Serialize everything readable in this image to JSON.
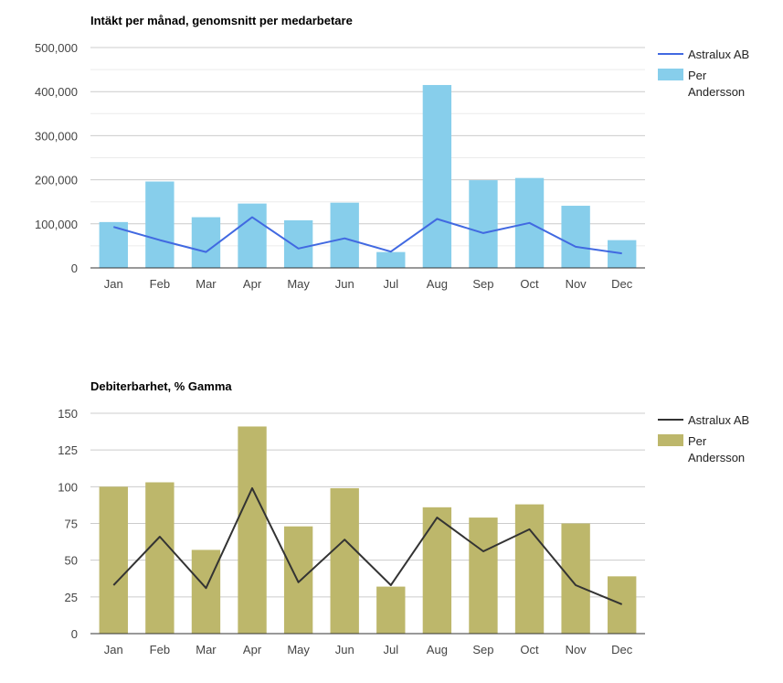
{
  "chart_data": [
    {
      "type": "bar",
      "title": "Intäkt per månad, genomsnitt per medarbetare",
      "categories": [
        "Jan",
        "Feb",
        "Mar",
        "Apr",
        "May",
        "Jun",
        "Jul",
        "Aug",
        "Sep",
        "Oct",
        "Nov",
        "Dec"
      ],
      "y_ticks": [
        "0",
        "100,000",
        "200,000",
        "300,000",
        "400,000",
        "500,000"
      ],
      "ylim": [
        0,
        500000
      ],
      "legend_position": "right",
      "series": [
        {
          "name": "Astralux AB",
          "type": "line",
          "color": "#4169e1",
          "values": [
            93000,
            63000,
            36000,
            115000,
            44000,
            67000,
            37000,
            111000,
            79000,
            102000,
            48000,
            33000
          ]
        },
        {
          "name_lines": [
            "Per",
            "Andersson"
          ],
          "type": "bar",
          "color": "#87ceeb",
          "values": [
            104000,
            196000,
            115000,
            146000,
            108000,
            148000,
            36000,
            415000,
            199000,
            204000,
            141000,
            63000
          ]
        }
      ]
    },
    {
      "type": "bar",
      "title": "Debiterbarhet, % Gamma",
      "categories": [
        "Jan",
        "Feb",
        "Mar",
        "Apr",
        "May",
        "Jun",
        "Jul",
        "Aug",
        "Sep",
        "Oct",
        "Nov",
        "Dec"
      ],
      "y_ticks": [
        "0",
        "25",
        "50",
        "75",
        "100",
        "125",
        "150"
      ],
      "ylim": [
        0,
        150
      ],
      "legend_position": "right",
      "series": [
        {
          "name": "Astralux AB",
          "type": "line",
          "color": "#333333",
          "values": [
            33,
            66,
            31,
            99,
            35,
            64,
            33,
            79,
            56,
            71,
            33,
            20
          ]
        },
        {
          "name_lines": [
            "Per",
            "Andersson"
          ],
          "type": "bar",
          "color": "#bdb76b",
          "values": [
            100,
            103,
            57,
            141,
            73,
            99,
            32,
            86,
            79,
            88,
            75,
            39
          ]
        }
      ]
    }
  ]
}
